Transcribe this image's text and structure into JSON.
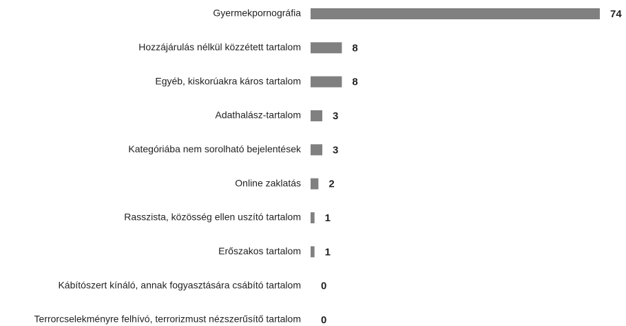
{
  "chart_data": {
    "type": "hbar",
    "categories": [
      "Gyermekpornográfia",
      "Hozzájárulás nélkül közzétett tartalom",
      "Egyéb, kiskorúakra káros tartalom",
      "Adathalász-tartalom",
      "Kategóriába nem sorolható bejelentések",
      "Online zaklatás",
      "Rasszista, közösség ellen uszító tartalom",
      "Erőszakos tartalom",
      "Kábítószert kínáló, annak fogyasztására csábító tartalom",
      "Terrorcselekményre felhívó, terrorizmust nézszerűsítő tartalom"
    ],
    "values": [
      74,
      8,
      8,
      3,
      3,
      2,
      1,
      1,
      0,
      0
    ],
    "color": "#808080"
  }
}
